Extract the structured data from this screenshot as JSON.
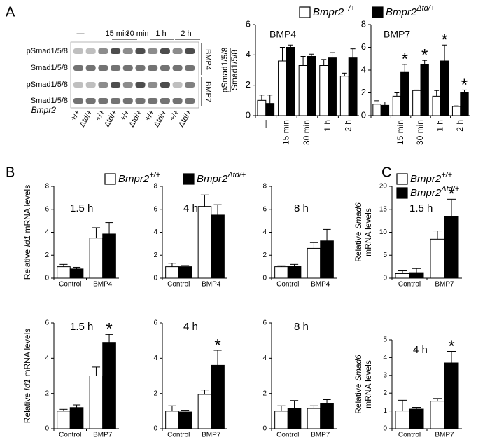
{
  "panels": [
    {
      "label": "A",
      "legend": [
        {
          "name": "Bmpr2",
          "sup": "+/+"
        },
        {
          "name": "Bmpr2",
          "sup": "Δtd/+"
        }
      ]
    },
    {
      "label": "B",
      "legend": [
        {
          "name": "Bmpr2",
          "sup": "+/+"
        },
        {
          "name": "Bmpr2",
          "sup": "Δtd/+"
        }
      ]
    },
    {
      "label": "C",
      "legend": [
        {
          "name": "Bmpr2",
          "sup": "+/+"
        },
        {
          "name": "Bmpr2",
          "sup": "Δtd/+"
        }
      ]
    }
  ],
  "blot": {
    "time_labels": [
      "—",
      "15 min",
      "30 min",
      "1 h",
      "2 h"
    ],
    "row_labels": [
      "pSmad1/5/8",
      "Smad1/5/8",
      "pSmad1/5/8",
      "Smad1/5/8"
    ],
    "ligand_labels": [
      "BMP4",
      "BMP7"
    ],
    "genotype_title": "Bmpr2",
    "genotypes": [
      "+/+",
      "Δtd/+",
      "+/+",
      "Δtd/+",
      "+/+",
      "Δtd/+",
      "+/+",
      "Δtd/+",
      "+/+",
      "Δtd/+"
    ]
  },
  "chart_data": [
    {
      "type": "bar",
      "title": "BMP4",
      "categories": [
        "—",
        "15 min",
        "30 min",
        "1 h",
        "2 h"
      ],
      "ylim": [
        0,
        6
      ],
      "yticks": [
        0,
        2,
        4,
        6
      ],
      "ylabel": [
        [
          {
            "text": "pSmad1/5/8"
          }
        ],
        [
          {
            "text": "Smad1/5/8"
          }
        ]
      ],
      "series": [
        {
          "color": "#ffffff",
          "values": [
            1.0,
            3.6,
            3.3,
            3.3,
            2.6
          ],
          "errors": [
            0.35,
            0.9,
            0.6,
            0.4,
            0.2
          ]
        },
        {
          "color": "#000000",
          "values": [
            0.8,
            4.5,
            3.9,
            3.8,
            3.8
          ],
          "errors": [
            0.55,
            0.15,
            0.15,
            0.35,
            0.6
          ]
        }
      ]
    },
    {
      "type": "bar",
      "title": "BMP7",
      "categories": [
        "—",
        "15 min",
        "30 min",
        "1 h",
        "2 h"
      ],
      "ylim": [
        0,
        8
      ],
      "yticks": [
        0,
        2,
        4,
        6,
        8
      ],
      "series": [
        {
          "color": "#ffffff",
          "values": [
            1.0,
            1.7,
            2.2,
            1.7,
            0.8
          ],
          "errors": [
            0.3,
            0.3,
            0.05,
            0.5,
            0.05
          ]
        },
        {
          "color": "#000000",
          "values": [
            0.9,
            3.8,
            4.5,
            4.8,
            2.0
          ],
          "errors": [
            0.3,
            0.7,
            0.35,
            1.4,
            0.25
          ],
          "significance": [
            null,
            "*",
            "*",
            "*",
            "*"
          ]
        }
      ]
    },
    {
      "type": "bar",
      "title": "1.5 h",
      "categories": [
        "Control",
        "BMP4"
      ],
      "ylim": [
        0,
        8
      ],
      "yticks": [
        0,
        2,
        4,
        6,
        8
      ],
      "ylabel": [
        [
          {
            "text": "Relative "
          },
          {
            "text": "Id1",
            "italic": true
          },
          {
            "text": " mRNA levels"
          }
        ]
      ],
      "series": [
        {
          "color": "#ffffff",
          "values": [
            1.0,
            3.5
          ],
          "errors": [
            0.2,
            0.9
          ]
        },
        {
          "color": "#000000",
          "values": [
            0.8,
            3.85
          ],
          "errors": [
            0.15,
            1.0
          ]
        }
      ]
    },
    {
      "type": "bar",
      "title": "4 h",
      "categories": [
        "Control",
        "BMP4"
      ],
      "ylim": [
        0,
        8
      ],
      "yticks": [
        0,
        2,
        4,
        6,
        8
      ],
      "series": [
        {
          "color": "#ffffff",
          "values": [
            1.0,
            6.25
          ],
          "errors": [
            0.3,
            1.0
          ]
        },
        {
          "color": "#000000",
          "values": [
            1.0,
            5.5
          ],
          "errors": [
            0.1,
            0.9
          ]
        }
      ]
    },
    {
      "type": "bar",
      "title": "8 h",
      "categories": [
        "Control",
        "BMP4"
      ],
      "ylim": [
        0,
        8
      ],
      "yticks": [
        0,
        2,
        4,
        6,
        8
      ],
      "series": [
        {
          "color": "#ffffff",
          "values": [
            1.0,
            2.6
          ],
          "errors": [
            0.08,
            0.5
          ]
        },
        {
          "color": "#000000",
          "values": [
            1.05,
            3.25
          ],
          "errors": [
            0.15,
            1.0
          ]
        }
      ]
    },
    {
      "type": "bar",
      "title": "1.5 h",
      "categories": [
        "Control",
        "BMP7"
      ],
      "ylim": [
        0,
        6
      ],
      "yticks": [
        0,
        2,
        4,
        6
      ],
      "ylabel": [
        [
          {
            "text": "Relative "
          },
          {
            "text": "Id1",
            "italic": true
          },
          {
            "text": " mRNA levels"
          }
        ]
      ],
      "series": [
        {
          "color": "#ffffff",
          "values": [
            1.0,
            3.0
          ],
          "errors": [
            0.1,
            0.5
          ]
        },
        {
          "color": "#000000",
          "values": [
            1.2,
            4.9
          ],
          "errors": [
            0.15,
            0.45
          ],
          "significance": [
            null,
            "*"
          ]
        }
      ]
    },
    {
      "type": "bar",
      "title": "4 h",
      "categories": [
        "Control",
        "BMP7"
      ],
      "ylim": [
        0,
        6
      ],
      "yticks": [
        0,
        2,
        4,
        6
      ],
      "series": [
        {
          "color": "#ffffff",
          "values": [
            1.0,
            1.95
          ],
          "errors": [
            0.3,
            0.25
          ]
        },
        {
          "color": "#000000",
          "values": [
            0.95,
            3.6
          ],
          "errors": [
            0.1,
            0.85
          ],
          "significance": [
            null,
            "*"
          ]
        }
      ]
    },
    {
      "type": "bar",
      "title": "8 h",
      "categories": [
        "Control",
        "BMP7"
      ],
      "ylim": [
        0,
        6
      ],
      "yticks": [
        0,
        2,
        4,
        6
      ],
      "series": [
        {
          "color": "#ffffff",
          "values": [
            1.0,
            1.15
          ],
          "errors": [
            0.3,
            0.15
          ]
        },
        {
          "color": "#000000",
          "values": [
            1.15,
            1.45
          ],
          "errors": [
            0.45,
            0.2
          ]
        }
      ]
    },
    {
      "type": "bar",
      "title": "1.5 h",
      "categories": [
        "Control",
        "BMP7"
      ],
      "ylim": [
        0,
        20
      ],
      "yticks": [
        0,
        5,
        10,
        15,
        20
      ],
      "ylabel": [
        [
          {
            "text": "Relative "
          },
          {
            "text": "Smad6",
            "italic": true
          }
        ],
        [
          {
            "text": "mRNA levels"
          }
        ]
      ],
      "series": [
        {
          "color": "#ffffff",
          "values": [
            1.0,
            8.5
          ],
          "errors": [
            0.6,
            1.8
          ]
        },
        {
          "color": "#000000",
          "values": [
            1.2,
            13.4
          ],
          "errors": [
            0.9,
            3.8
          ],
          "significance": [
            null,
            "*"
          ]
        }
      ]
    },
    {
      "type": "bar",
      "title": "4 h",
      "categories": [
        "Control",
        "BMP7"
      ],
      "ylim": [
        0,
        5
      ],
      "yticks": [
        0,
        1,
        2,
        3,
        4,
        5
      ],
      "ylabel": [
        [
          {
            "text": "Relative "
          },
          {
            "text": "Smad6",
            "italic": true
          }
        ],
        [
          {
            "text": "mRNA levels"
          }
        ]
      ],
      "series": [
        {
          "color": "#ffffff",
          "values": [
            1.0,
            1.55
          ],
          "errors": [
            0.6,
            0.15
          ]
        },
        {
          "color": "#000000",
          "values": [
            1.1,
            3.7
          ],
          "errors": [
            0.1,
            0.65
          ],
          "significance": [
            null,
            "*"
          ]
        }
      ]
    }
  ]
}
